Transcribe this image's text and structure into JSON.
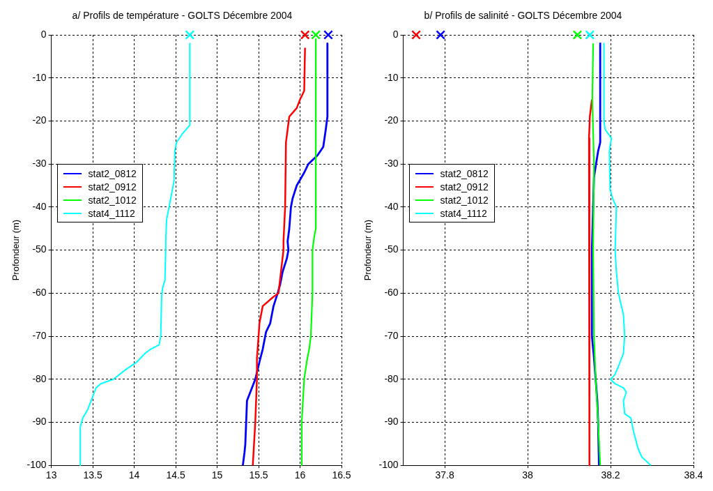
{
  "chart_data": [
    {
      "type": "line",
      "title": "a/ Profils de température - GOLTS Décembre 2004",
      "ylabel": "Profondeur (m)",
      "xlim": [
        13,
        16.5
      ],
      "xticks": [
        13,
        13.5,
        14,
        14.5,
        15,
        15.5,
        16,
        16.5
      ],
      "ylim": [
        -100,
        0
      ],
      "yticks": [
        -100,
        -90,
        -80,
        -70,
        -60,
        -50,
        -40,
        -30,
        -20,
        -10,
        0
      ],
      "grid": true,
      "legend": "left",
      "line_style": "solid",
      "series": [
        {
          "name": "stat2_0812",
          "color": "#0000ff",
          "x": [
            16.33,
            16.33,
            16.31,
            16.28,
            16.21,
            16.1,
            16.05,
            15.96,
            15.91,
            15.89,
            15.87,
            15.85,
            15.86,
            15.84,
            15.79,
            15.76,
            15.73,
            15.68,
            15.64,
            15.59,
            15.55,
            15.51,
            15.46,
            15.4,
            15.36,
            15.35,
            15.34,
            15.33,
            15.31
          ],
          "values": [
            -2,
            -19,
            -22,
            -26,
            -28,
            -30,
            -32,
            -35,
            -38,
            -40,
            -45,
            -48,
            -50,
            -52,
            -55,
            -58,
            -60,
            -63,
            -67,
            -69,
            -73,
            -76,
            -80,
            -83,
            -85,
            -90,
            -95,
            -97,
            -100
          ]
        },
        {
          "name": "stat2_0912",
          "color": "#ff0000",
          "x": [
            16.06,
            16.05,
            16.0,
            15.96,
            15.87,
            15.85,
            15.83,
            15.82,
            15.8,
            15.8,
            15.77,
            15.74,
            15.67,
            15.55,
            15.51,
            15.5,
            15.48,
            15.48,
            15.46,
            15.43
          ],
          "values": [
            -3,
            -13,
            -15,
            -17,
            -19,
            -22,
            -25,
            -40,
            -48,
            -50,
            -55,
            -60,
            -61,
            -63,
            -67,
            -70,
            -75,
            -80,
            -90,
            -100
          ]
        },
        {
          "name": "stat2_1012",
          "color": "#00ff00",
          "x": [
            16.19,
            16.19,
            16.17,
            16.15,
            16.15,
            16.13,
            16.11,
            16.08,
            16.05,
            16.02,
            16.02
          ],
          "values": [
            -1,
            -45,
            -47,
            -50,
            -60,
            -70,
            -73,
            -76,
            -80,
            -90,
            -100
          ]
        },
        {
          "name": "stat4_1112",
          "color": "#00ffff",
          "x": [
            14.67,
            14.67,
            14.58,
            14.51,
            14.49,
            14.48,
            14.44,
            14.39,
            14.38,
            14.38,
            14.37,
            14.34,
            14.33,
            14.32,
            14.3,
            14.2,
            14.13,
            14.03,
            13.88,
            13.75,
            13.6,
            13.54,
            13.48,
            13.44,
            13.38,
            13.35,
            13.35
          ],
          "values": [
            -2,
            -21,
            -23,
            -25,
            -27,
            -34,
            -38,
            -43,
            -48,
            -50,
            -57,
            -59,
            -61,
            -70,
            -72,
            -73,
            -74,
            -76,
            -78,
            -80,
            -81,
            -82,
            -85,
            -87,
            -89,
            -91,
            -100
          ]
        },
        {
          "type": "scatter",
          "marker": "cross",
          "color": "#0000ff",
          "x": [
            16.34
          ],
          "values": [
            0
          ]
        },
        {
          "type": "scatter",
          "marker": "cross",
          "color": "#ff0000",
          "x": [
            16.06
          ],
          "values": [
            0
          ]
        },
        {
          "type": "scatter",
          "marker": "cross",
          "color": "#00ff00",
          "x": [
            16.19
          ],
          "values": [
            0
          ]
        },
        {
          "type": "scatter",
          "marker": "cross",
          "color": "#00ffff",
          "x": [
            14.67
          ],
          "values": [
            0
          ]
        }
      ]
    },
    {
      "type": "line",
      "title": "b/ Profils de salinité - GOLTS Décembre 2004",
      "ylabel": "Profondeur (m)",
      "xlim": [
        37.7,
        38.4
      ],
      "xticks": [
        37.8,
        38,
        38.2,
        38.4
      ],
      "ylim": [
        -100,
        0
      ],
      "yticks": [
        -100,
        -90,
        -80,
        -70,
        -60,
        -50,
        -40,
        -30,
        -20,
        -10,
        0
      ],
      "grid": true,
      "legend": "left",
      "line_style": "solid",
      "series": [
        {
          "name": "stat2_0812",
          "color": "#0000ff",
          "x": [
            38.175,
            38.175,
            38.17,
            38.165,
            38.16,
            38.155,
            38.155,
            38.16,
            38.168,
            38.17,
            38.172
          ],
          "values": [
            -2,
            -25,
            -27,
            -30,
            -33,
            -50,
            -70,
            -75,
            -85,
            -90,
            -100
          ]
        },
        {
          "name": "stat2_0912",
          "color": "#ff0000",
          "x": [
            38.155,
            38.15,
            38.148,
            38.149
          ],
          "values": [
            -15,
            -19,
            -24,
            -100
          ]
        },
        {
          "name": "stat2_1012",
          "color": "#00ff00",
          "x": [
            38.158,
            38.156,
            38.16,
            38.158,
            38.16,
            38.164,
            38.17,
            38.175
          ],
          "values": [
            -2,
            -15,
            -30,
            -50,
            -70,
            -80,
            -90,
            -100
          ]
        },
        {
          "name": "stat4_1112",
          "color": "#00ffff",
          "x": [
            38.184,
            38.184,
            38.187,
            38.202,
            38.197,
            38.199,
            38.205,
            38.214,
            38.212,
            38.211,
            38.214,
            38.219,
            38.231,
            38.234,
            38.231,
            38.219,
            38.21,
            38.2,
            38.21,
            38.231,
            38.238,
            38.231,
            38.234,
            38.249,
            38.255,
            38.266,
            38.275,
            38.297
          ],
          "values": [
            -2,
            -20,
            -22,
            -24,
            -27,
            -36,
            -38,
            -40,
            -47,
            -50,
            -55,
            -60,
            -65,
            -70,
            -74,
            -77,
            -79,
            -80,
            -81,
            -82,
            -83,
            -85,
            -88,
            -89,
            -92,
            -96,
            -98,
            -100
          ]
        },
        {
          "type": "scatter",
          "marker": "cross",
          "color": "#0000ff",
          "x": [
            37.79
          ],
          "values": [
            0
          ]
        },
        {
          "type": "scatter",
          "marker": "cross",
          "color": "#ff0000",
          "x": [
            37.731
          ],
          "values": [
            0
          ]
        },
        {
          "type": "scatter",
          "marker": "cross",
          "color": "#00ff00",
          "x": [
            38.12
          ],
          "values": [
            0
          ]
        },
        {
          "type": "scatter",
          "marker": "cross",
          "color": "#00ffff",
          "x": [
            38.15
          ],
          "values": [
            0
          ]
        }
      ]
    }
  ]
}
